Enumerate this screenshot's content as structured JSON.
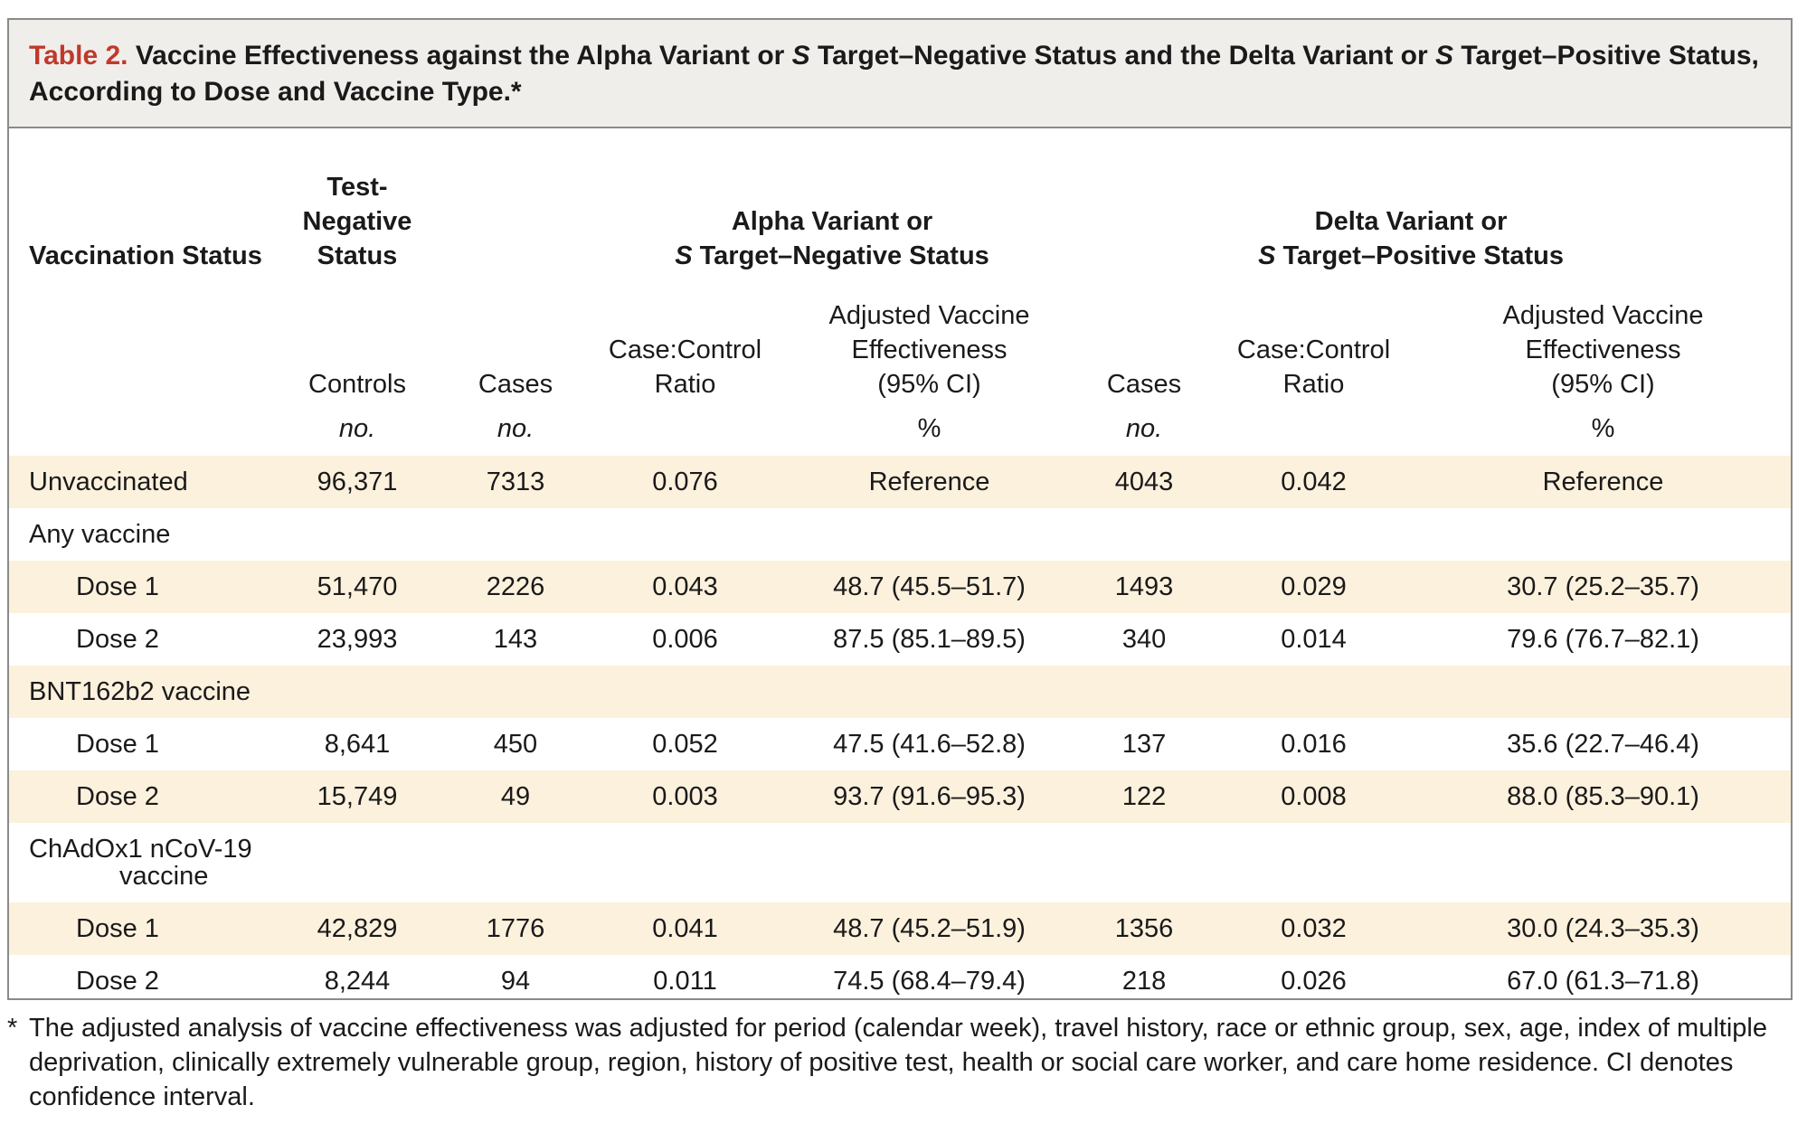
{
  "caption": {
    "label": "Table 2.",
    "title_part1": " Vaccine Effectiveness against the Alpha Variant or ",
    "title_s1": "S",
    "title_part2": " Target–Negative Status and the Delta Variant or ",
    "title_s2": "S",
    "title_part3": " Target–Positive Status, According to Dose and Vaccine Type.*"
  },
  "headers": {
    "vaccination_status": "Vaccination Status",
    "test_negative": "Test-\nNegative\nStatus",
    "alpha_line1": "Alpha Variant or",
    "alpha_s": "S",
    "alpha_line2": " Target–Negative Status",
    "delta_line1": "Delta Variant or",
    "delta_s": "S",
    "delta_line2": " Target–Positive Status",
    "controls": "Controls",
    "cases": "Cases",
    "case_control_ratio": "Case:Control\nRatio",
    "adjusted_ve": "Adjusted Vaccine\nEffectiveness\n(95% CI)",
    "delta_cases": "Cases",
    "delta_ratio": "Case:Control\nRatio",
    "delta_ve": "Adjusted Vaccine\nEffectiveness\n(95% CI)",
    "unit_no": "no.",
    "unit_pct": "%"
  },
  "rows": [
    {
      "label": "Unvaccinated",
      "type": "group",
      "shade": true,
      "controls": "96,371",
      "cases": "7313",
      "ratio": "0.076",
      "ve": "Reference",
      "dcases": "4043",
      "dratio": "0.042",
      "dve": "Reference"
    },
    {
      "label": "Any vaccine",
      "type": "group",
      "shade": false,
      "controls": "",
      "cases": "",
      "ratio": "",
      "ve": "",
      "dcases": "",
      "dratio": "",
      "dve": ""
    },
    {
      "label": "Dose 1",
      "type": "dose",
      "shade": true,
      "controls": "51,470",
      "cases": "2226",
      "ratio": "0.043",
      "ve": "48.7 (45.5–51.7)",
      "dcases": "1493",
      "dratio": "0.029",
      "dve": "30.7 (25.2–35.7)"
    },
    {
      "label": "Dose 2",
      "type": "dose",
      "shade": false,
      "controls": "23,993",
      "cases": "143",
      "ratio": "0.006",
      "ve": "87.5 (85.1–89.5)",
      "dcases": "340",
      "dratio": "0.014",
      "dve": "79.6 (76.7–82.1)"
    },
    {
      "label": "BNT162b2 vaccine",
      "type": "group",
      "shade": true,
      "controls": "",
      "cases": "",
      "ratio": "",
      "ve": "",
      "dcases": "",
      "dratio": "",
      "dve": ""
    },
    {
      "label": "Dose 1",
      "type": "dose",
      "shade": false,
      "controls": "8,641",
      "cases": "450",
      "ratio": "0.052",
      "ve": "47.5 (41.6–52.8)",
      "dcases": "137",
      "dratio": "0.016",
      "dve": "35.6 (22.7–46.4)"
    },
    {
      "label": "Dose 2",
      "type": "dose",
      "shade": true,
      "controls": "15,749",
      "cases": "49",
      "ratio": "0.003",
      "ve": "93.7 (91.6–95.3)",
      "dcases": "122",
      "dratio": "0.008",
      "dve": "88.0 (85.3–90.1)"
    },
    {
      "label": "ChAdOx1 nCoV-19\nvaccine",
      "type": "group-tall",
      "shade": false,
      "controls": "",
      "cases": "",
      "ratio": "",
      "ve": "",
      "dcases": "",
      "dratio": "",
      "dve": ""
    },
    {
      "label": "Dose 1",
      "type": "dose",
      "shade": true,
      "controls": "42,829",
      "cases": "1776",
      "ratio": "0.041",
      "ve": "48.7 (45.2–51.9)",
      "dcases": "1356",
      "dratio": "0.032",
      "dve": "30.0 (24.3–35.3)"
    },
    {
      "label": "Dose 2",
      "type": "dose",
      "shade": false,
      "controls": "8,244",
      "cases": "94",
      "ratio": "0.011",
      "ve": "74.5 (68.4–79.4)",
      "dcases": "218",
      "dratio": "0.026",
      "dve": "67.0 (61.3–71.8)"
    }
  ],
  "footnote": {
    "marker": "*",
    "text": "The adjusted analysis of vaccine effectiveness was adjusted for period (calendar week), travel history, race or ethnic group, sex, age, index of multiple deprivation, clinically extremely vulnerable group, region, history of positive test, health or social care worker, and care home residence. CI denotes confidence interval."
  }
}
